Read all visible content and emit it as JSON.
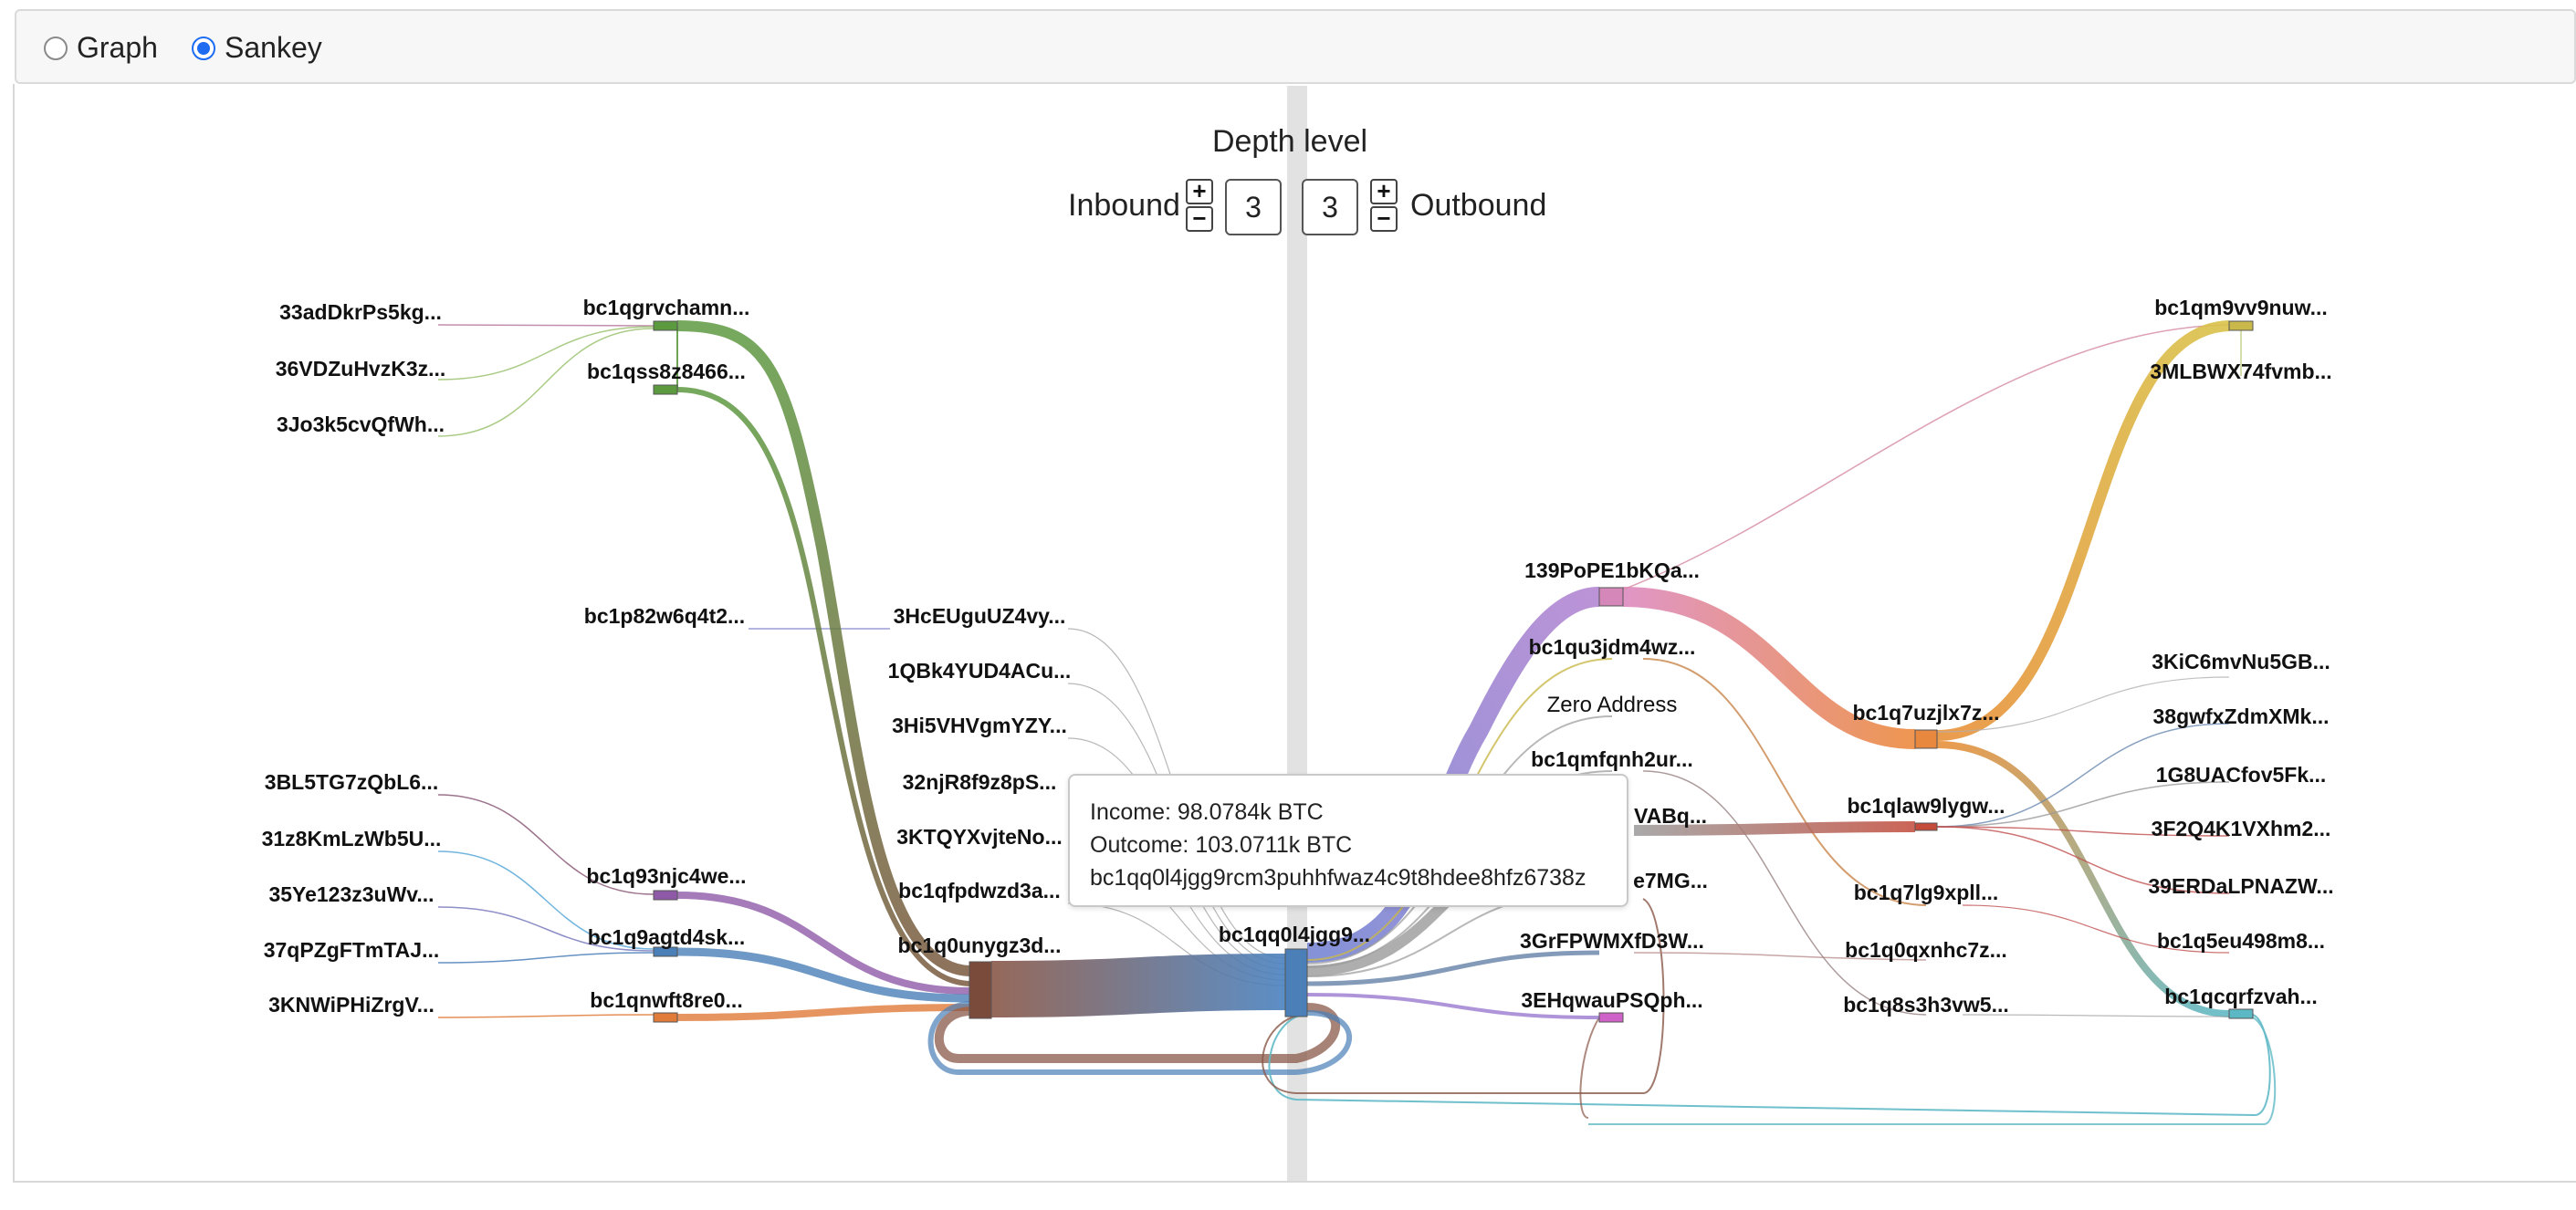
{
  "view_toggle": {
    "options": [
      {
        "label": "Graph",
        "checked": false
      },
      {
        "label": "Sankey",
        "checked": true
      }
    ]
  },
  "depth": {
    "title": "Depth level",
    "inbound_label": "Inbound",
    "outbound_label": "Outbound",
    "inbound_value": "3",
    "outbound_value": "3",
    "plus": "+",
    "minus": "−"
  },
  "tooltip": {
    "income": "Income: 98.0784k BTC",
    "outcome": "Outcome: 103.0711k BTC",
    "address": "bc1qq0l4jgg9rcm3puhhfwaz4c9t8hdee8hfz6738z"
  },
  "nodes": [
    {
      "id": "n1",
      "label": "33adDkrPs5kg...",
      "color": "#9a9a9a"
    },
    {
      "id": "n2",
      "label": "36VDZuHvzK3z...",
      "color": "#9a9a9a"
    },
    {
      "id": "n3",
      "label": "3Jo3k5cvQfWh...",
      "color": "#9a9a9a"
    },
    {
      "id": "n4",
      "label": "bc1qgrvchamn...",
      "color": "#5b9a3e"
    },
    {
      "id": "n5",
      "label": "bc1qss8z8466...",
      "color": "#5b9a3e"
    },
    {
      "id": "n6",
      "label": "bc1p82w6q4t2...",
      "color": "#9a9a9a"
    },
    {
      "id": "n7",
      "label": "3BL5TG7zQbL6...",
      "color": "#9a9a9a"
    },
    {
      "id": "n8",
      "label": "31z8KmLzWb5U...",
      "color": "#9a9a9a"
    },
    {
      "id": "n9",
      "label": "35Ye123z3uWv...",
      "color": "#9a9a9a"
    },
    {
      "id": "n10",
      "label": "37qPZgFTmTAJ...",
      "color": "#9a9a9a"
    },
    {
      "id": "n11",
      "label": "3KNWiPHiZrgV...",
      "color": "#9a9a9a"
    },
    {
      "id": "n12",
      "label": "bc1q93njc4we...",
      "color": "#8e5aa8"
    },
    {
      "id": "n13",
      "label": "bc1q9agtd4sk...",
      "color": "#4a7fb8"
    },
    {
      "id": "n14",
      "label": "bc1qnwft8re0...",
      "color": "#e07b39"
    },
    {
      "id": "n15",
      "label": "3HcEUguUZ4vy...",
      "color": "#9a9a9a"
    },
    {
      "id": "n16",
      "label": "1QBk4YUD4ACu...",
      "color": "#9a9a9a"
    },
    {
      "id": "n17",
      "label": "3Hi5VHVgmYZY...",
      "color": "#9a9a9a"
    },
    {
      "id": "n18",
      "label": "32njR8f9z8pS...",
      "color": "#9a9a9a"
    },
    {
      "id": "n19",
      "label": "3KTQYXvjteNo...",
      "color": "#9a9a9a"
    },
    {
      "id": "n20",
      "label": "bc1qfpdwzd3a...",
      "color": "#9a9a9a"
    },
    {
      "id": "n21",
      "label": "bc1q0unygz3d...",
      "color": "#7a4a3a"
    },
    {
      "id": "n22",
      "label": "bc1qq0l4jgg9...",
      "color": "#4a7fb8"
    },
    {
      "id": "n23",
      "label": "139PoPE1bKQa...",
      "color": "#d487b8"
    },
    {
      "id": "n24",
      "label": "bc1qu3jdm4wz...",
      "color": "#9a9a9a"
    },
    {
      "id": "n25",
      "label": "Zero Address",
      "color": "#9a9a9a"
    },
    {
      "id": "n26",
      "label": "bc1qmfqnh2ur...",
      "color": "#9a9a9a"
    },
    {
      "id": "n27",
      "label": "VABq...",
      "color": "#9a9a9a"
    },
    {
      "id": "n28",
      "label": "e7MG...",
      "color": "#9a9a9a"
    },
    {
      "id": "n29",
      "label": "3GrFPWMXfD3W...",
      "color": "#9a9a9a"
    },
    {
      "id": "n30",
      "label": "3EHqwauPSQph...",
      "color": "#cf62c8"
    },
    {
      "id": "n31",
      "label": "bc1q7uzjlx7z...",
      "color": "#e8873e"
    },
    {
      "id": "n32",
      "label": "bc1qlaw9lygw...",
      "color": "#c44a3a"
    },
    {
      "id": "n33",
      "label": "bc1q7lg9xpll...",
      "color": "#9a9a9a"
    },
    {
      "id": "n34",
      "label": "bc1q0qxnhc7z...",
      "color": "#9a9a9a"
    },
    {
      "id": "n35",
      "label": "bc1q8s3h3vw5...",
      "color": "#9a9a9a"
    },
    {
      "id": "n36",
      "label": "bc1qm9vv9nuw...",
      "color": "#c9b84a"
    },
    {
      "id": "n37",
      "label": "3MLBWX74fvmb...",
      "color": "#9a9a9a"
    },
    {
      "id": "n38",
      "label": "3KiC6mvNu5GB...",
      "color": "#9a9a9a"
    },
    {
      "id": "n39",
      "label": "38gwfxZdmXMk...",
      "color": "#9a9a9a"
    },
    {
      "id": "n40",
      "label": "1G8UACfov5Fk...",
      "color": "#9a9a9a"
    },
    {
      "id": "n41",
      "label": "3F2Q4K1VXhm2...",
      "color": "#9a9a9a"
    },
    {
      "id": "n42",
      "label": "39ERDaLPNAZW...",
      "color": "#9a9a9a"
    },
    {
      "id": "n43",
      "label": "bc1q5eu498m8...",
      "color": "#9a9a9a"
    },
    {
      "id": "n44",
      "label": "bc1qcqrfzvah...",
      "color": "#5bb8c4"
    }
  ]
}
